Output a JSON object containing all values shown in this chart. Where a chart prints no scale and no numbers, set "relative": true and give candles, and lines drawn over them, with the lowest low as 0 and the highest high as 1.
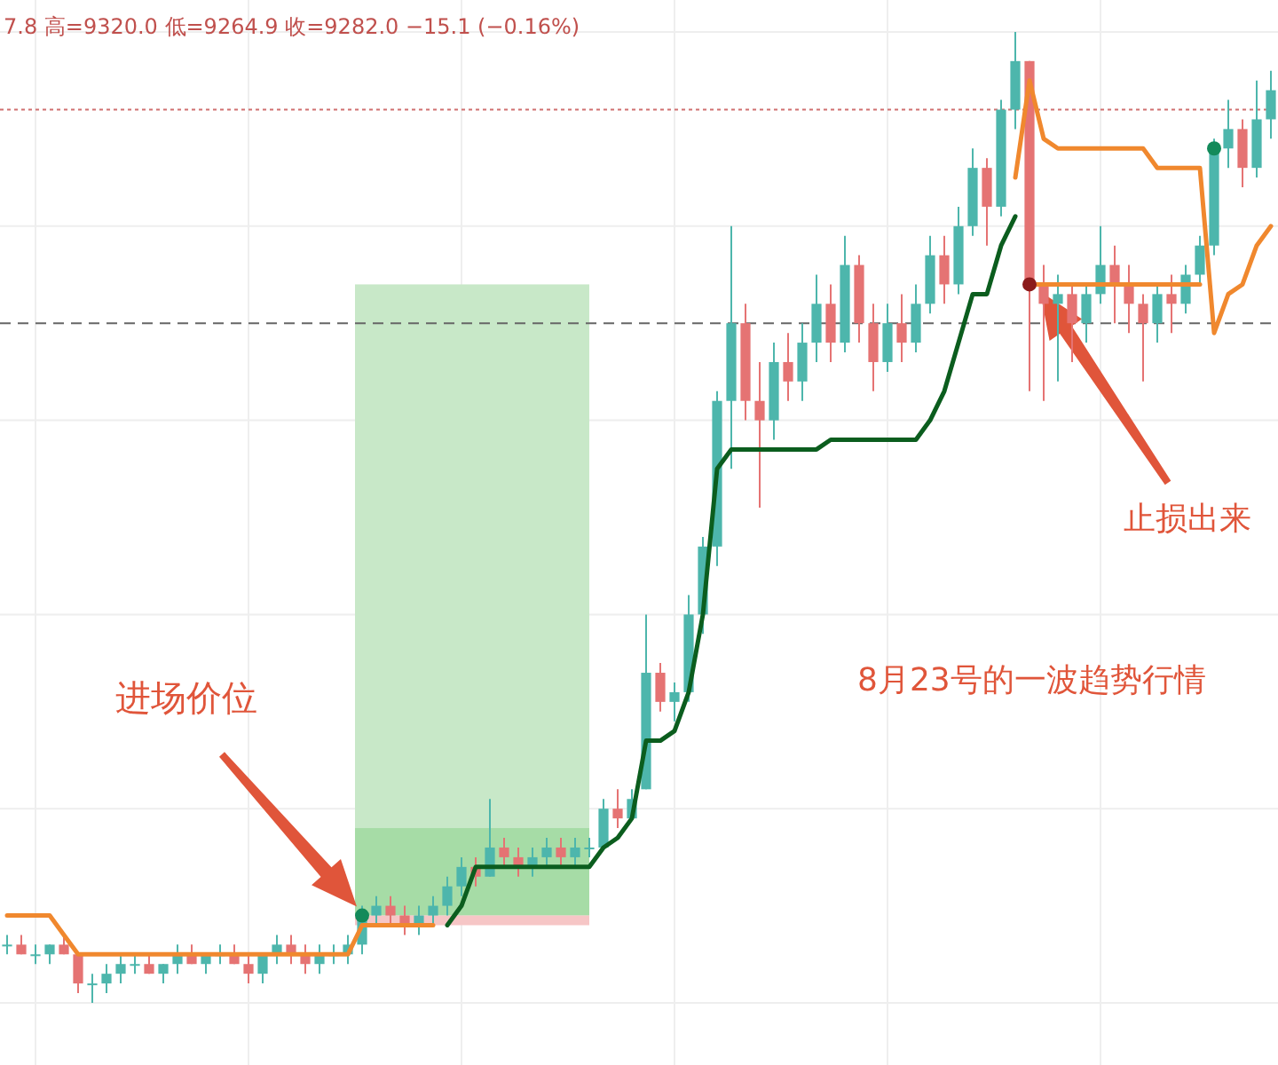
{
  "chart_data": {
    "type": "candlestick",
    "relative": true,
    "grid": true,
    "categories": [
      null,
      null,
      null,
      null,
      null,
      null,
      null,
      null,
      null,
      null,
      null,
      null,
      null,
      null,
      null,
      null,
      null,
      null,
      null,
      null,
      null,
      null,
      null,
      null,
      null,
      null,
      null,
      null,
      null,
      null,
      null,
      null,
      null,
      null,
      null,
      null,
      null,
      null,
      null,
      null,
      null,
      null,
      null,
      null,
      null,
      null,
      null,
      null,
      null,
      null,
      null,
      null,
      null,
      null,
      null,
      null,
      null,
      null,
      null,
      null,
      null,
      null,
      null,
      null,
      null,
      null,
      null,
      null,
      null,
      null,
      null,
      null,
      null,
      null,
      null,
      null,
      null,
      null,
      null,
      null,
      null,
      null,
      null,
      null,
      null,
      null,
      null,
      null,
      null,
      null
    ],
    "ohlc": [
      [
        0.06,
        0.07,
        0.05,
        0.06
      ],
      [
        0.06,
        0.07,
        0.05,
        0.05
      ],
      [
        0.05,
        0.06,
        0.04,
        0.05
      ],
      [
        0.05,
        0.06,
        0.04,
        0.06
      ],
      [
        0.06,
        0.07,
        0.05,
        0.05
      ],
      [
        0.05,
        0.05,
        0.01,
        0.02
      ],
      [
        0.02,
        0.03,
        0,
        0.02
      ],
      [
        0.02,
        0.04,
        0.01,
        0.03
      ],
      [
        0.03,
        0.05,
        0.02,
        0.04
      ],
      [
        0.04,
        0.05,
        0.03,
        0.04
      ],
      [
        0.04,
        0.05,
        0.03,
        0.03
      ],
      [
        0.03,
        0.04,
        0.02,
        0.04
      ],
      [
        0.04,
        0.06,
        0.03,
        0.05
      ],
      [
        0.05,
        0.06,
        0.04,
        0.04
      ],
      [
        0.04,
        0.05,
        0.03,
        0.05
      ],
      [
        0.05,
        0.06,
        0.04,
        0.05
      ],
      [
        0.05,
        0.06,
        0.04,
        0.04
      ],
      [
        0.04,
        0.05,
        0.02,
        0.03
      ],
      [
        0.03,
        0.05,
        0.02,
        0.05
      ],
      [
        0.05,
        0.07,
        0.04,
        0.06
      ],
      [
        0.06,
        0.07,
        0.04,
        0.05
      ],
      [
        0.05,
        0.06,
        0.03,
        0.04
      ],
      [
        0.04,
        0.06,
        0.03,
        0.05
      ],
      [
        0.05,
        0.06,
        0.04,
        0.05
      ],
      [
        0.05,
        0.07,
        0.04,
        0.06
      ],
      [
        0.06,
        0.1,
        0.05,
        0.09
      ],
      [
        0.09,
        0.11,
        0.08,
        0.1
      ],
      [
        0.1,
        0.11,
        0.08,
        0.09
      ],
      [
        0.09,
        0.1,
        0.07,
        0.08
      ],
      [
        0.08,
        0.1,
        0.07,
        0.09
      ],
      [
        0.09,
        0.11,
        0.08,
        0.1
      ],
      [
        0.1,
        0.13,
        0.09,
        0.12
      ],
      [
        0.12,
        0.15,
        0.11,
        0.14
      ],
      [
        0.14,
        0.15,
        0.12,
        0.13
      ],
      [
        0.13,
        0.21,
        0.13,
        0.16
      ],
      [
        0.16,
        0.17,
        0.14,
        0.15
      ],
      [
        0.15,
        0.16,
        0.13,
        0.14
      ],
      [
        0.14,
        0.16,
        0.13,
        0.15
      ],
      [
        0.15,
        0.17,
        0.14,
        0.16
      ],
      [
        0.16,
        0.17,
        0.14,
        0.15
      ],
      [
        0.15,
        0.17,
        0.14,
        0.16
      ],
      [
        0.16,
        0.17,
        0.15,
        0.16
      ],
      [
        0.16,
        0.21,
        0.16,
        0.2
      ],
      [
        0.2,
        0.22,
        0.18,
        0.19
      ],
      [
        0.19,
        0.22,
        0.19,
        0.21
      ],
      [
        0.22,
        0.4,
        0.22,
        0.34
      ],
      [
        0.34,
        0.35,
        0.3,
        0.31
      ],
      [
        0.31,
        0.33,
        0.29,
        0.32
      ],
      [
        0.32,
        0.42,
        0.31,
        0.4
      ],
      [
        0.4,
        0.48,
        0.38,
        0.47
      ],
      [
        0.47,
        0.63,
        0.45,
        0.62
      ],
      [
        0.62,
        0.8,
        0.55,
        0.7
      ],
      [
        0.7,
        0.72,
        0.6,
        0.62
      ],
      [
        0.62,
        0.66,
        0.51,
        0.6
      ],
      [
        0.6,
        0.68,
        0.58,
        0.66
      ],
      [
        0.66,
        0.69,
        0.62,
        0.64
      ],
      [
        0.64,
        0.7,
        0.62,
        0.68
      ],
      [
        0.68,
        0.75,
        0.66,
        0.72
      ],
      [
        0.72,
        0.74,
        0.66,
        0.68
      ],
      [
        0.68,
        0.79,
        0.67,
        0.76
      ],
      [
        0.76,
        0.77,
        0.68,
        0.7
      ],
      [
        0.7,
        0.72,
        0.63,
        0.66
      ],
      [
        0.66,
        0.72,
        0.65,
        0.7
      ],
      [
        0.7,
        0.73,
        0.66,
        0.68
      ],
      [
        0.68,
        0.74,
        0.67,
        0.72
      ],
      [
        0.72,
        0.79,
        0.71,
        0.77
      ],
      [
        0.77,
        0.79,
        0.72,
        0.74
      ],
      [
        0.74,
        0.82,
        0.73,
        0.8
      ],
      [
        0.8,
        0.88,
        0.79,
        0.86
      ],
      [
        0.86,
        0.87,
        0.78,
        0.82
      ],
      [
        0.82,
        0.93,
        0.81,
        0.92
      ],
      [
        0.92,
        1,
        0.9,
        0.97
      ],
      [
        0.97,
        0.97,
        0.63,
        0.74
      ],
      [
        0.74,
        0.76,
        0.62,
        0.72
      ],
      [
        0.72,
        0.75,
        0.64,
        0.73
      ],
      [
        0.73,
        0.74,
        0.66,
        0.7
      ],
      [
        0.7,
        0.74,
        0.68,
        0.73
      ],
      [
        0.73,
        0.8,
        0.72,
        0.76
      ],
      [
        0.76,
        0.78,
        0.7,
        0.74
      ],
      [
        0.74,
        0.76,
        0.69,
        0.72
      ],
      [
        0.72,
        0.73,
        0.64,
        0.7
      ],
      [
        0.7,
        0.74,
        0.68,
        0.73
      ],
      [
        0.73,
        0.75,
        0.69,
        0.72
      ],
      [
        0.72,
        0.76,
        0.71,
        0.75
      ],
      [
        0.75,
        0.79,
        0.74,
        0.78
      ],
      [
        0.78,
        0.89,
        0.77,
        0.88
      ],
      [
        0.88,
        0.93,
        0.86,
        0.9
      ],
      [
        0.9,
        0.91,
        0.84,
        0.86
      ],
      [
        0.86,
        0.95,
        0.85,
        0.91
      ],
      [
        0.91,
        0.96,
        0.89,
        0.94
      ]
    ],
    "colors": [
      "#4db6ac",
      "#e57373",
      "#4db6ac",
      "#4db6ac",
      "#e57373",
      "#e57373",
      "#4db6ac",
      "#4db6ac",
      "#4db6ac",
      "#4db6ac",
      "#e57373",
      "#4db6ac",
      "#4db6ac",
      "#e57373",
      "#4db6ac",
      "#4db6ac",
      "#e57373",
      "#e57373",
      "#4db6ac",
      "#4db6ac",
      "#e57373",
      "#e57373",
      "#4db6ac",
      "#4db6ac",
      "#4db6ac",
      "#4db6ac",
      "#4db6ac",
      "#e57373",
      "#e57373",
      "#4db6ac",
      "#4db6ac",
      "#4db6ac",
      "#4db6ac",
      "#e57373",
      "#4db6ac",
      "#e57373",
      "#e57373",
      "#4db6ac",
      "#4db6ac",
      "#e57373",
      "#4db6ac",
      "#4db6ac",
      "#4db6ac",
      "#e57373",
      "#4db6ac",
      "#4db6ac",
      "#e57373",
      "#4db6ac",
      "#4db6ac",
      "#4db6ac",
      "#4db6ac",
      "#4db6ac",
      "#e57373",
      "#e57373",
      "#4db6ac",
      "#e57373",
      "#4db6ac",
      "#4db6ac",
      "#e57373",
      "#4db6ac",
      "#e57373",
      "#e57373",
      "#4db6ac",
      "#e57373",
      "#4db6ac",
      "#4db6ac",
      "#e57373",
      "#4db6ac",
      "#4db6ac",
      "#e57373",
      "#4db6ac",
      "#4db6ac",
      "#e57373",
      "#e57373",
      "#4db6ac",
      "#e57373",
      "#4db6ac",
      "#4db6ac",
      "#e57373",
      "#e57373",
      "#e57373",
      "#4db6ac",
      "#e57373",
      "#4db6ac",
      "#4db6ac",
      "#4db6ac",
      "#4db6ac",
      "#e57373",
      "#4db6ac",
      "#4db6ac"
    ],
    "series": [
      {
        "type": "line",
        "color": "#f0882e",
        "values": [
          0.09,
          0.09,
          0.09,
          0.09,
          0.07,
          0.05,
          0.05,
          0.05,
          0.05,
          0.05,
          0.05,
          0.05,
          0.05,
          0.05,
          0.05,
          0.05,
          0.05,
          0.05,
          0.05,
          0.05,
          0.05,
          0.05,
          0.05,
          0.05,
          0.05,
          0.08,
          0.08,
          0.08,
          0.08,
          0.08,
          0.08,
          null,
          null,
          null,
          null,
          null,
          null,
          null,
          null,
          null,
          null,
          null,
          null,
          null,
          null,
          null,
          null,
          null,
          null,
          null,
          null,
          null,
          null,
          null,
          null,
          null,
          null,
          null,
          null,
          null,
          null,
          null,
          null,
          null,
          null,
          null,
          null,
          null,
          null,
          null,
          null,
          0.85,
          0.95,
          0.89,
          0.88,
          0.88,
          0.88,
          0.88,
          0.88,
          0.88,
          0.88,
          0.86,
          0.86,
          0.86,
          0.86,
          0.69,
          0.73,
          0.74,
          0.78,
          0.8
        ]
      },
      {
        "type": "line",
        "color": "#f0882e",
        "values": [
          null,
          null,
          null,
          null,
          null,
          null,
          null,
          null,
          null,
          null,
          null,
          null,
          null,
          null,
          null,
          null,
          null,
          null,
          null,
          null,
          null,
          null,
          null,
          null,
          null,
          null,
          null,
          null,
          null,
          null,
          null,
          null,
          null,
          null,
          null,
          null,
          null,
          null,
          null,
          null,
          null,
          null,
          null,
          null,
          null,
          null,
          null,
          null,
          null,
          null,
          null,
          null,
          null,
          null,
          null,
          null,
          null,
          null,
          null,
          null,
          null,
          null,
          null,
          null,
          null,
          null,
          null,
          null,
          null,
          null,
          null,
          null,
          0.74,
          0.74,
          0.74,
          0.74,
          0.74,
          0.74,
          0.74,
          0.74,
          0.74,
          0.74,
          0.74,
          0.74,
          0.74,
          null,
          null,
          null,
          null,
          null
        ]
      },
      {
        "type": "line",
        "color": "#0b5d1e",
        "values": [
          null,
          null,
          null,
          null,
          null,
          null,
          null,
          null,
          null,
          null,
          null,
          null,
          null,
          null,
          null,
          null,
          null,
          null,
          null,
          null,
          null,
          null,
          null,
          null,
          null,
          null,
          null,
          null,
          null,
          null,
          null,
          0.08,
          0.1,
          0.14,
          0.14,
          0.14,
          0.14,
          0.14,
          0.14,
          0.14,
          0.14,
          0.14,
          0.16,
          0.17,
          0.19,
          0.27,
          0.27,
          0.28,
          0.32,
          0.4,
          0.55,
          0.57,
          0.57,
          0.57,
          0.57,
          0.57,
          0.57,
          0.57,
          0.58,
          0.58,
          0.58,
          0.58,
          0.58,
          0.58,
          0.58,
          0.6,
          0.63,
          0.68,
          0.73,
          0.73,
          0.78,
          0.81,
          null,
          null,
          null,
          null,
          null,
          null,
          null,
          null,
          null,
          null,
          null,
          null,
          null,
          null,
          null,
          null,
          null,
          null
        ]
      },
      {
        "type": "scatter",
        "marker": "circle",
        "colors": [
          null,
          null,
          null,
          null,
          null,
          null,
          null,
          null,
          null,
          null,
          null,
          null,
          null,
          null,
          null,
          null,
          null,
          null,
          null,
          null,
          null,
          null,
          null,
          null,
          null,
          "#138a5a",
          null,
          null,
          null,
          null,
          null,
          null,
          null,
          null,
          null,
          null,
          null,
          null,
          null,
          null,
          null,
          null,
          null,
          null,
          null,
          null,
          null,
          null,
          null,
          null,
          null,
          null,
          null,
          null,
          null,
          null,
          null,
          null,
          null,
          null,
          null,
          null,
          null,
          null,
          null,
          null,
          null,
          null,
          null,
          null,
          null,
          null,
          "#8b1a1a",
          null,
          null,
          null,
          null,
          null,
          null,
          null,
          null,
          null,
          null,
          null,
          null,
          "#138a5a",
          null,
          null,
          null,
          null
        ],
        "values": [
          null,
          null,
          null,
          null,
          null,
          null,
          null,
          null,
          null,
          null,
          null,
          null,
          null,
          null,
          null,
          null,
          null,
          null,
          null,
          null,
          null,
          null,
          null,
          null,
          null,
          0.09,
          null,
          null,
          null,
          null,
          null,
          null,
          null,
          null,
          null,
          null,
          null,
          null,
          null,
          null,
          null,
          null,
          null,
          null,
          null,
          null,
          null,
          null,
          null,
          null,
          null,
          null,
          null,
          null,
          null,
          null,
          null,
          null,
          null,
          null,
          null,
          null,
          null,
          null,
          null,
          null,
          null,
          null,
          null,
          null,
          null,
          null,
          0.74,
          null,
          null,
          null,
          null,
          null,
          null,
          null,
          null,
          null,
          null,
          null,
          null,
          0.88,
          null,
          null,
          null,
          null
        ]
      }
    ],
    "ref_lines": [
      {
        "axis": "y",
        "value": 0.92,
        "color": "#d07070",
        "line_style": "dotted"
      },
      {
        "axis": "y",
        "value": 0.7,
        "color": "#666666",
        "line_style": "dashed"
      }
    ],
    "annotations": [
      "7.8 高=9320.0 低=9264.9 收=9282.0 −15.1 (−0.16%)",
      "进场价位",
      "止损出来",
      "8月23号的一波趋势行情"
    ]
  }
}
